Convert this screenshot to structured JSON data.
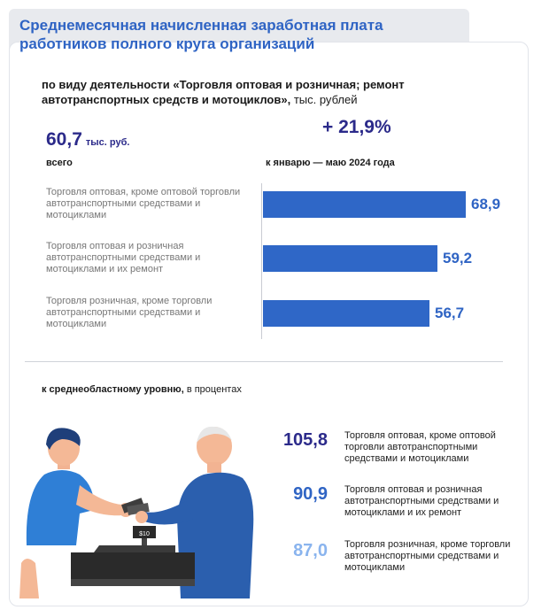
{
  "title": "Среднемесячная начисленная заработная плата работников полного круга организаций",
  "subtitle": {
    "bold": "по виду деятельности «Торговля оптовая и розничная; ремонт автотранспортных средств и мотоциклов»,",
    "rest": " тыс. рублей"
  },
  "total": {
    "value": "60,7",
    "unit": "тыс. руб.",
    "label": "всего"
  },
  "growth": {
    "value": "+ 21,9%",
    "label": "к январю — маю 2024 года"
  },
  "section2": {
    "bold": "к среднеобластному уровню,",
    "rest": "  в процентах"
  },
  "illustration": {
    "register_price": "$10"
  },
  "colors": {
    "accent": "#2f64c4",
    "bar": "#2f67c7",
    "dark_value": "#2b2a8a",
    "light_value": "#8ab4ee"
  },
  "chart_data": [
    {
      "type": "bar",
      "orientation": "horizontal",
      "categories": [
        "Торговля оптовая, кроме оптовой торговли автотранспортными средствами и мотоциклами",
        "Торговля оптовая и розничная автотранспортными средствами и мотоциклами и их ремонт",
        "Торговля розничная, кроме торговли автотранспортными средствами и мотоциклами"
      ],
      "values": [
        68.9,
        59.2,
        56.7
      ],
      "value_labels": [
        "68,9",
        "59,2",
        "56,7"
      ],
      "xlim": [
        0,
        68.9
      ],
      "grid": false
    },
    {
      "type": "table",
      "rows": [
        {
          "value": "105,8",
          "label": "Торговля оптовая, кроме оптовой торговли автотранспортными средствами и мотоциклами",
          "color": "#2b2a8a"
        },
        {
          "value": "90,9",
          "label": "Торговля оптовая и розничная автотранспортными средствами и мотоциклами и их ремонт",
          "color": "#2f64c4"
        },
        {
          "value": "87,0",
          "label": "Торговля розничная, кроме торговли автотранспортными средствами и мотоциклами",
          "color": "#8ab4ee"
        }
      ]
    }
  ]
}
